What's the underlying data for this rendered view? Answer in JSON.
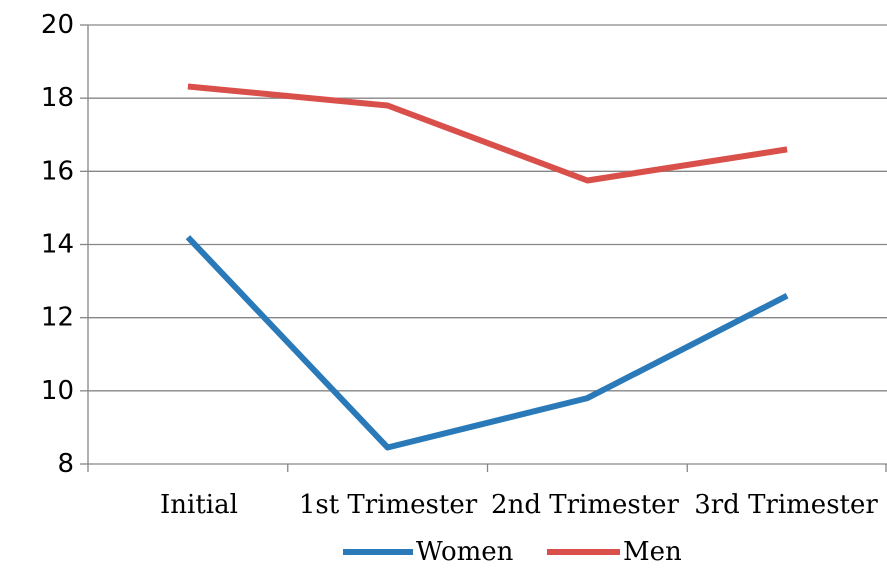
{
  "chart_data": {
    "type": "line",
    "categories": [
      "Initial",
      "1st Trimester",
      "2nd Trimester",
      "3rd Trimester"
    ],
    "series": [
      {
        "name": "Women",
        "values": [
          14.2,
          8.45,
          9.8,
          12.6
        ],
        "color": "#2A7AB9"
      },
      {
        "name": "Men",
        "values": [
          18.32,
          17.8,
          15.75,
          16.6
        ],
        "color": "#D9504A"
      }
    ],
    "ylim": [
      8,
      20
    ],
    "yticks": [
      8,
      10,
      12,
      14,
      16,
      18,
      20
    ],
    "ytick_labels": [
      "8",
      "10",
      "12",
      "14",
      "16",
      "18",
      "20"
    ],
    "grid": true,
    "legend_position": "bottom",
    "title": "",
    "xlabel": "",
    "ylabel": ""
  }
}
